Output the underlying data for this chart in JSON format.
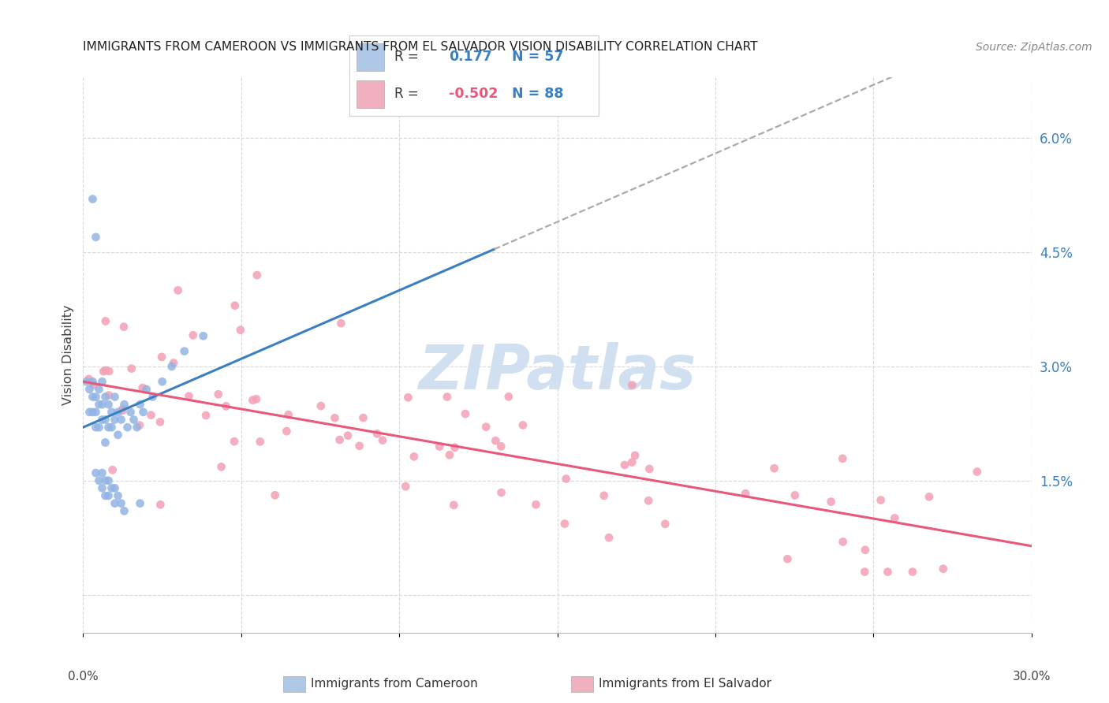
{
  "title": "IMMIGRANTS FROM CAMEROON VS IMMIGRANTS FROM EL SALVADOR VISION DISABILITY CORRELATION CHART",
  "source": "Source: ZipAtlas.com",
  "ylabel": "Vision Disability",
  "ylabel_right_ticks": [
    0.0,
    0.015,
    0.03,
    0.045,
    0.06
  ],
  "ylabel_right_labels": [
    "",
    "1.5%",
    "3.0%",
    "4.5%",
    "6.0%"
  ],
  "xlim": [
    0.0,
    0.3
  ],
  "ylim": [
    -0.005,
    0.068
  ],
  "color_cameroon": "#92b4e3",
  "color_elsalvador": "#f4a0b5",
  "trendline_cameroon": "#3a7fc1",
  "trendline_elsalvador": "#e8587a",
  "trendline_ext": "#aaaaaa",
  "watermark": "ZIPatlas",
  "watermark_color": "#d0e0f0",
  "background_color": "#ffffff",
  "grid_color": "#d8d8d8",
  "legend_box_color_cameroon": "#b0c8e8",
  "legend_box_color_elsalvador": "#f0b0c0",
  "R_cameroon": 0.177,
  "N_cameroon": 57,
  "R_elsalvador": -0.502,
  "N_elsalvador": 88,
  "cam_slope": 0.18,
  "cam_intercept": 0.022,
  "esal_slope": -0.072,
  "esal_intercept": 0.028
}
